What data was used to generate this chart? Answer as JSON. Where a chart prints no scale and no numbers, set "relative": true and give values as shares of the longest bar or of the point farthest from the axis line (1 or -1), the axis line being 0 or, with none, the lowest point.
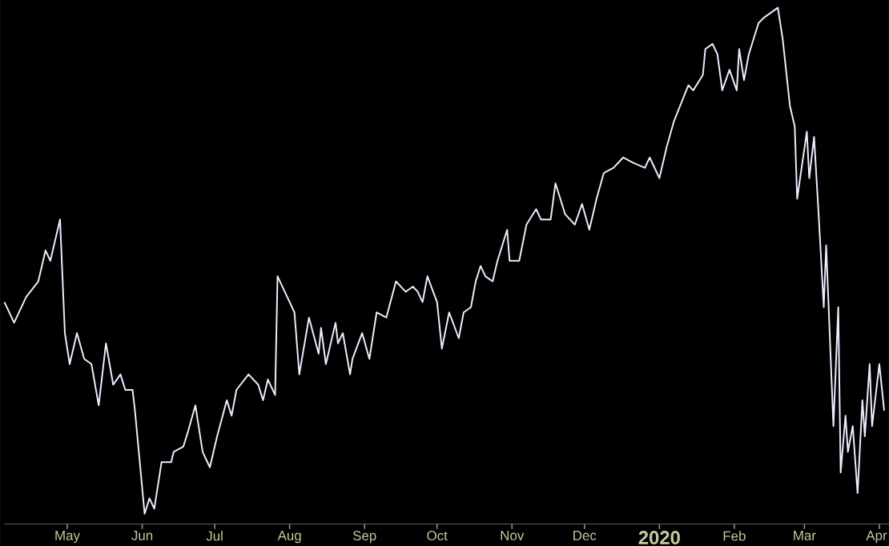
{
  "chart_data": {
    "type": "line",
    "relative": true,
    "color": "#ececff",
    "xlim": [
      "2019-04-05",
      "2020-04-05"
    ],
    "xticks": [
      {
        "value": "2019-05-01",
        "label": "May"
      },
      {
        "value": "2019-06-01",
        "label": "Jun"
      },
      {
        "value": "2019-07-01",
        "label": "Jul"
      },
      {
        "value": "2019-08-01",
        "label": "Aug"
      },
      {
        "value": "2019-09-01",
        "label": "Sep"
      },
      {
        "value": "2019-10-01",
        "label": "Oct"
      },
      {
        "value": "2019-11-01",
        "label": "Nov"
      },
      {
        "value": "2019-12-01",
        "label": "Dec"
      },
      {
        "value": "2020-01-01",
        "label": "2020"
      },
      {
        "value": "2020-02-01",
        "label": "Feb"
      },
      {
        "value": "2020-03-01",
        "label": "Mar"
      },
      {
        "value": "2020-04-01",
        "label": "Apr"
      }
    ],
    "x": [
      "2019-04-05",
      "2019-04-09",
      "2019-04-14",
      "2019-04-19",
      "2019-04-22",
      "2019-04-24",
      "2019-04-28",
      "2019-04-30",
      "2019-05-02",
      "2019-05-05",
      "2019-05-08",
      "2019-05-11",
      "2019-05-14",
      "2019-05-17",
      "2019-05-20",
      "2019-05-23",
      "2019-05-25",
      "2019-05-28",
      "2019-05-29",
      "2019-06-02",
      "2019-06-04",
      "2019-06-06",
      "2019-06-09",
      "2019-06-13",
      "2019-06-14",
      "2019-06-18",
      "2019-06-20",
      "2019-06-23",
      "2019-06-26",
      "2019-06-29",
      "2019-07-02",
      "2019-07-06",
      "2019-07-08",
      "2019-07-10",
      "2019-07-15",
      "2019-07-19",
      "2019-07-21",
      "2019-07-23",
      "2019-07-26",
      "2019-07-27",
      "2019-07-31",
      "2019-08-03",
      "2019-08-05",
      "2019-08-09",
      "2019-08-13",
      "2019-08-14",
      "2019-08-16",
      "2019-08-20",
      "2019-08-21",
      "2019-08-23",
      "2019-08-26",
      "2019-08-27",
      "2019-08-31",
      "2019-09-03",
      "2019-09-06",
      "2019-09-10",
      "2019-09-14",
      "2019-09-18",
      "2019-09-21",
      "2019-09-23",
      "2019-09-25",
      "2019-09-27",
      "2019-10-01",
      "2019-10-03",
      "2019-10-06",
      "2019-10-10",
      "2019-10-12",
      "2019-10-15",
      "2019-10-17",
      "2019-10-19",
      "2019-10-21",
      "2019-10-24",
      "2019-10-26",
      "2019-10-30",
      "2019-10-31",
      "2019-11-04",
      "2019-11-07",
      "2019-11-11",
      "2019-11-13",
      "2019-11-17",
      "2019-11-19",
      "2019-11-23",
      "2019-11-27",
      "2019-11-30",
      "2019-12-03",
      "2019-12-06",
      "2019-12-09",
      "2019-12-13",
      "2019-12-17",
      "2019-12-21",
      "2019-12-26",
      "2019-12-28",
      "2020-01-01",
      "2020-01-04",
      "2020-01-07",
      "2020-01-13",
      "2020-01-15",
      "2020-01-19",
      "2020-01-20",
      "2020-01-23",
      "2020-01-25",
      "2020-01-27",
      "2020-01-30",
      "2020-02-02",
      "2020-02-03",
      "2020-02-05",
      "2020-02-07",
      "2020-02-11",
      "2020-02-13",
      "2020-02-16",
      "2020-02-19",
      "2020-02-21",
      "2020-02-24",
      "2020-02-26",
      "2020-02-27",
      "2020-03-02",
      "2020-03-03",
      "2020-03-05",
      "2020-03-07",
      "2020-03-09",
      "2020-03-10",
      "2020-03-13",
      "2020-03-15",
      "2020-03-16",
      "2020-03-18",
      "2020-03-19",
      "2020-03-21",
      "2020-03-23",
      "2020-03-25",
      "2020-03-26",
      "2020-03-28",
      "2020-03-29",
      "2020-04-01",
      "2020-04-03"
    ],
    "values": [
      0.43,
      0.39,
      0.44,
      0.47,
      0.53,
      0.51,
      0.59,
      0.37,
      0.31,
      0.37,
      0.32,
      0.31,
      0.23,
      0.35,
      0.27,
      0.29,
      0.26,
      0.26,
      0.22,
      0.02,
      0.05,
      0.03,
      0.12,
      0.12,
      0.14,
      0.15,
      0.18,
      0.23,
      0.14,
      0.11,
      0.17,
      0.24,
      0.21,
      0.26,
      0.29,
      0.27,
      0.24,
      0.28,
      0.25,
      0.48,
      0.44,
      0.41,
      0.29,
      0.4,
      0.33,
      0.38,
      0.31,
      0.39,
      0.35,
      0.37,
      0.29,
      0.32,
      0.37,
      0.32,
      0.41,
      0.4,
      0.47,
      0.45,
      0.46,
      0.45,
      0.43,
      0.48,
      0.43,
      0.34,
      0.41,
      0.36,
      0.41,
      0.42,
      0.47,
      0.5,
      0.48,
      0.47,
      0.51,
      0.57,
      0.51,
      0.51,
      0.58,
      0.61,
      0.59,
      0.59,
      0.66,
      0.6,
      0.58,
      0.62,
      0.57,
      0.63,
      0.68,
      0.69,
      0.71,
      0.7,
      0.69,
      0.71,
      0.67,
      0.73,
      0.78,
      0.85,
      0.84,
      0.87,
      0.92,
      0.93,
      0.91,
      0.84,
      0.88,
      0.84,
      0.92,
      0.86,
      0.91,
      0.97,
      0.98,
      0.99,
      1,
      0.94,
      0.81,
      0.77,
      0.63,
      0.76,
      0.67,
      0.75,
      0.59,
      0.42,
      0.54,
      0.19,
      0.42,
      0.1,
      0.21,
      0.14,
      0.19,
      0.06,
      0.24,
      0.17,
      0.31,
      0.19,
      0.31,
      0.22
    ]
  }
}
